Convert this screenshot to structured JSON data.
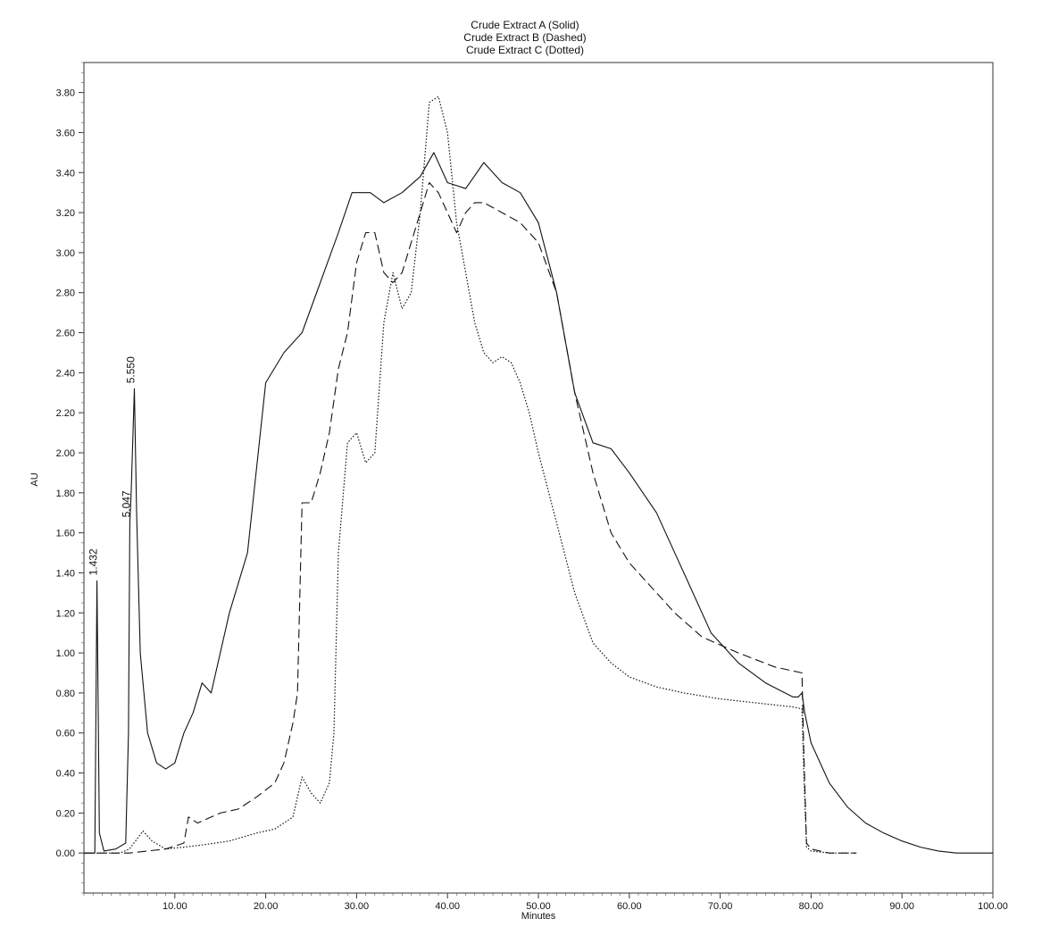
{
  "chart_data": {
    "type": "line",
    "title_lines": [
      "Crude Extract A (Solid)",
      "Crude Extract B (Dashed)",
      "Crude Extract C (Dotted)"
    ],
    "xlabel": "Minutes",
    "ylabel": "AU",
    "xlim": [
      0,
      100
    ],
    "ylim": [
      -0.2,
      3.95
    ],
    "x_ticks": [
      "10.00",
      "20.00",
      "30.00",
      "40.00",
      "50.00",
      "60.00",
      "70.00",
      "80.00",
      "90.00",
      "100.00"
    ],
    "y_ticks": [
      "0.00",
      "0.20",
      "0.40",
      "0.60",
      "0.80",
      "1.00",
      "1.20",
      "1.40",
      "1.60",
      "1.80",
      "2.00",
      "2.20",
      "2.40",
      "2.60",
      "2.80",
      "3.00",
      "3.20",
      "3.40",
      "3.60",
      "3.80"
    ],
    "grid": false,
    "peak_labels": [
      {
        "text": "1.432",
        "x": 1.432,
        "y": 1.36
      },
      {
        "text": "5.047",
        "x": 5.047,
        "y": 1.65
      },
      {
        "text": "5.550",
        "x": 5.55,
        "y": 2.32
      }
    ],
    "series": [
      {
        "style": "solid",
        "color": "#111111",
        "x": [
          0,
          1.2,
          1.432,
          1.7,
          2.2,
          3.5,
          4.6,
          4.9,
          5.047,
          5.2,
          5.55,
          5.8,
          6.2,
          7.0,
          8.0,
          9.0,
          10.0,
          11.0,
          12.0,
          13.0,
          14.0,
          16.0,
          18.0,
          20.0,
          22.0,
          24.0,
          26.0,
          28.0,
          29.5,
          30.5,
          31.5,
          33.0,
          35.0,
          37.0,
          38.5,
          40.0,
          42.0,
          44.0,
          46.0,
          48.0,
          50.0,
          52.0,
          54.0,
          56.0,
          58.0,
          60.0,
          63.0,
          66.0,
          69.0,
          72.0,
          75.0,
          78.0,
          78.6,
          79.0,
          79.3,
          80.0,
          82.0,
          84.0,
          86.0,
          88.0,
          90.0,
          92.0,
          94.0,
          96.0,
          98.0,
          100.0
        ],
        "y": [
          0.0,
          0.0,
          1.36,
          0.1,
          0.01,
          0.02,
          0.05,
          0.6,
          1.65,
          1.8,
          2.32,
          1.7,
          1.0,
          0.6,
          0.45,
          0.42,
          0.45,
          0.6,
          0.7,
          0.85,
          0.8,
          1.2,
          1.5,
          2.35,
          2.5,
          2.6,
          2.85,
          3.1,
          3.3,
          3.3,
          3.3,
          3.25,
          3.3,
          3.38,
          3.5,
          3.35,
          3.32,
          3.45,
          3.35,
          3.3,
          3.15,
          2.8,
          2.3,
          2.05,
          2.02,
          1.9,
          1.7,
          1.4,
          1.1,
          0.95,
          0.85,
          0.78,
          0.78,
          0.8,
          0.7,
          0.55,
          0.35,
          0.23,
          0.15,
          0.1,
          0.06,
          0.03,
          0.01,
          0.0,
          0.0,
          0.0
        ]
      },
      {
        "style": "dashed",
        "color": "#111111",
        "x": [
          0,
          3.0,
          5.0,
          7.0,
          9.0,
          11.0,
          11.5,
          12.5,
          13.5,
          15.0,
          17.0,
          19.0,
          21.0,
          22.0,
          23.0,
          23.5,
          24.0,
          25.0,
          26.0,
          27.0,
          28.0,
          29.0,
          30.0,
          31.0,
          32.0,
          33.0,
          34.0,
          35.0,
          36.0,
          37.0,
          38.0,
          39.0,
          40.0,
          41.0,
          42.0,
          43.0,
          44.0,
          46.0,
          48.0,
          50.0,
          52.0,
          54.0,
          56.0,
          58.0,
          60.0,
          62.0,
          65.0,
          68.0,
          72.0,
          76.0,
          79.0,
          79.2,
          79.5,
          80.0,
          82.0,
          85.0
        ],
        "y": [
          0.0,
          0.0,
          0.0,
          0.01,
          0.02,
          0.05,
          0.18,
          0.15,
          0.17,
          0.2,
          0.22,
          0.28,
          0.35,
          0.45,
          0.65,
          0.8,
          1.75,
          1.75,
          1.9,
          2.1,
          2.42,
          2.6,
          2.95,
          3.1,
          3.1,
          2.9,
          2.85,
          2.9,
          3.05,
          3.2,
          3.35,
          3.3,
          3.2,
          3.1,
          3.2,
          3.25,
          3.25,
          3.2,
          3.15,
          3.05,
          2.8,
          2.3,
          1.9,
          1.6,
          1.45,
          1.35,
          1.2,
          1.08,
          1.0,
          0.93,
          0.9,
          0.5,
          0.05,
          0.02,
          0.0,
          0.0
        ]
      },
      {
        "style": "dotted",
        "color": "#111111",
        "x": [
          0,
          4.0,
          5.0,
          6.0,
          6.5,
          7.5,
          9.0,
          11.0,
          13.0,
          16.0,
          19.0,
          21.0,
          23.0,
          24.0,
          25.0,
          26.0,
          27.0,
          27.5,
          28.0,
          29.0,
          30.0,
          31.0,
          32.0,
          33.0,
          34.0,
          35.0,
          36.0,
          37.0,
          38.0,
          39.0,
          40.0,
          41.0,
          42.0,
          43.0,
          44.0,
          45.0,
          46.0,
          47.0,
          48.0,
          49.0,
          50.0,
          52.0,
          54.0,
          56.0,
          58.0,
          60.0,
          63.0,
          66.0,
          70.0,
          74.0,
          78.0,
          79.0,
          79.2,
          79.5,
          80.0,
          82.0,
          85.0
        ],
        "y": [
          0.0,
          0.0,
          0.02,
          0.08,
          0.11,
          0.06,
          0.02,
          0.03,
          0.04,
          0.06,
          0.1,
          0.12,
          0.18,
          0.38,
          0.3,
          0.25,
          0.35,
          0.6,
          1.5,
          2.05,
          2.1,
          1.95,
          2.0,
          2.65,
          2.9,
          2.72,
          2.8,
          3.2,
          3.75,
          3.78,
          3.6,
          3.15,
          2.9,
          2.65,
          2.5,
          2.45,
          2.48,
          2.45,
          2.35,
          2.2,
          2.0,
          1.65,
          1.3,
          1.05,
          0.95,
          0.88,
          0.83,
          0.8,
          0.77,
          0.75,
          0.73,
          0.72,
          0.4,
          0.03,
          0.01,
          0.0,
          0.0
        ]
      }
    ]
  }
}
